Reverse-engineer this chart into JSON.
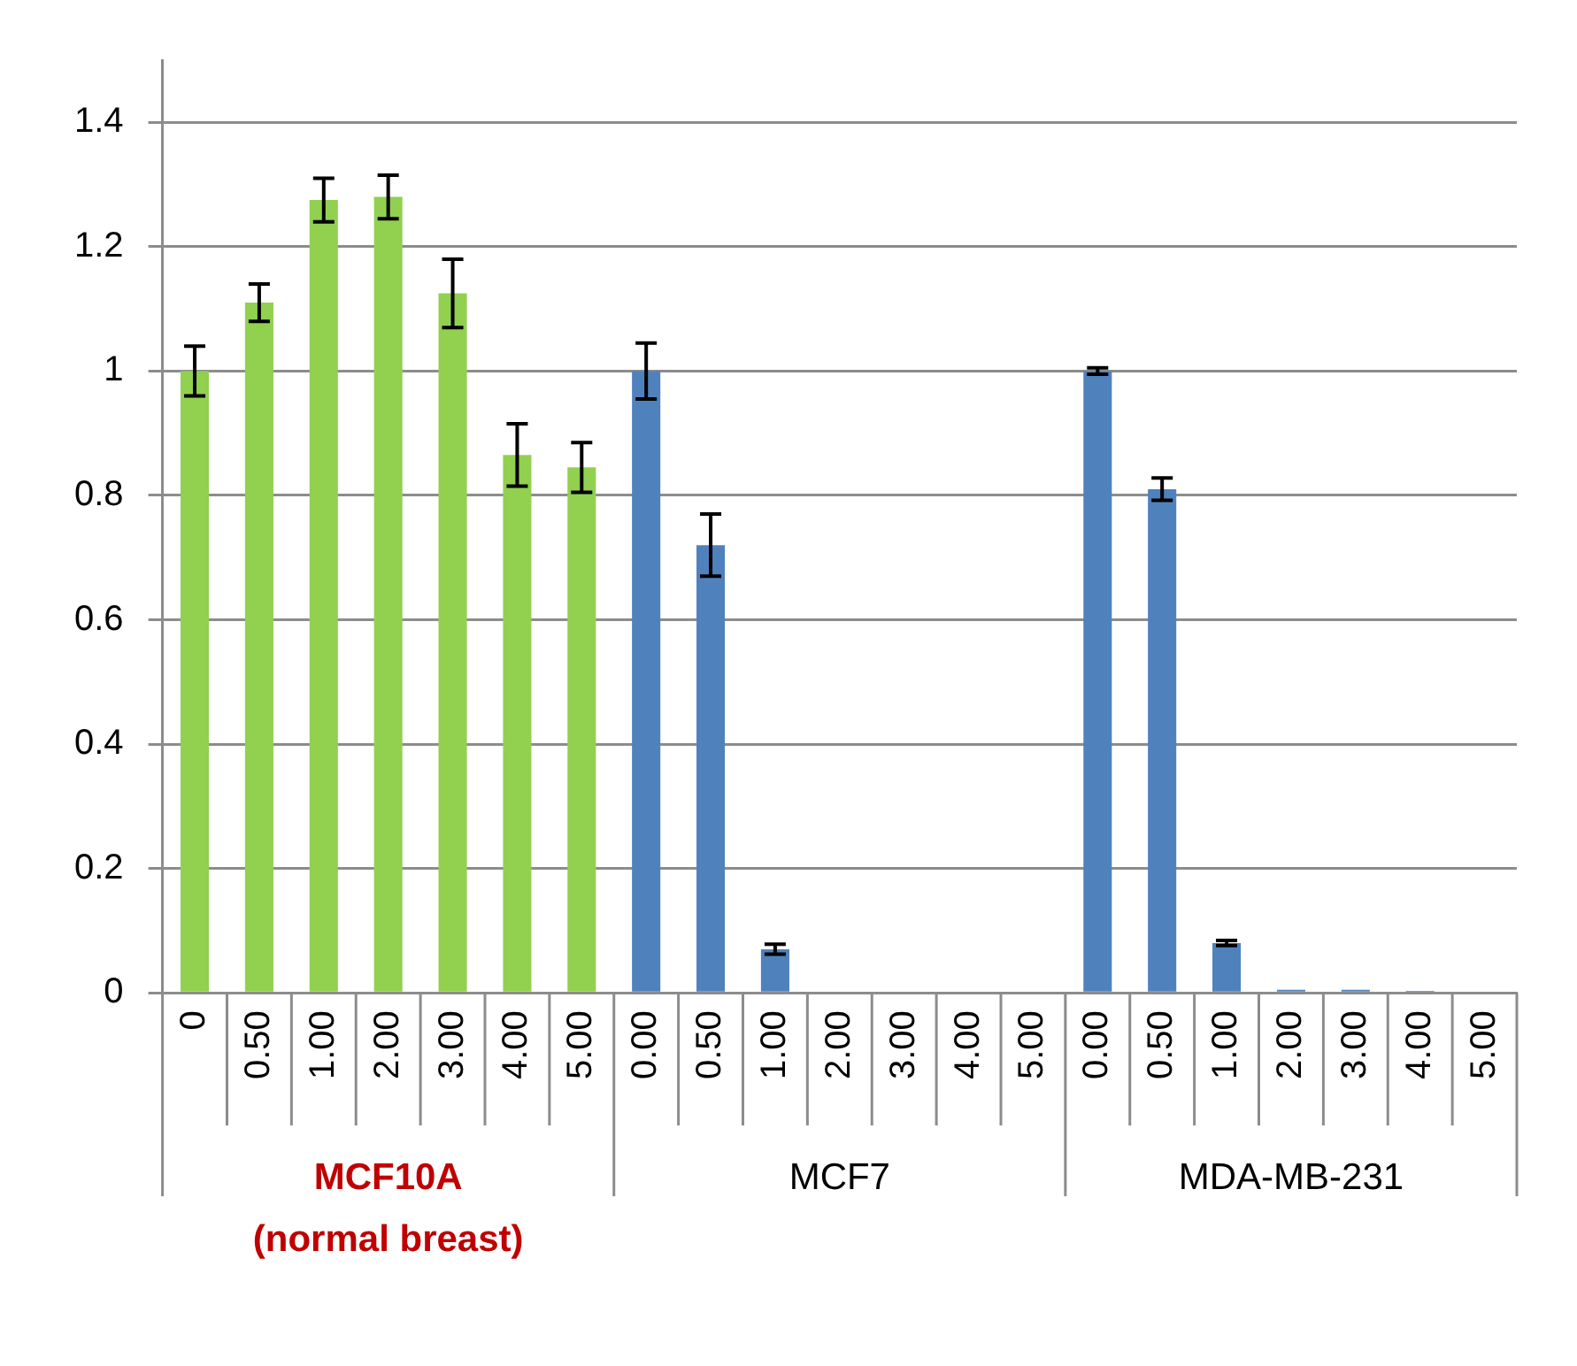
{
  "chart_data": {
    "type": "bar",
    "categories": [
      "0",
      "0.50",
      "1.00",
      "2.00",
      "3.00",
      "4.00",
      "5.00",
      "0.00",
      "0.50",
      "1.00",
      "2.00",
      "3.00",
      "4.00",
      "5.00",
      "0.00",
      "0.50",
      "1.00",
      "2.00",
      "3.00",
      "4.00",
      "5.00"
    ],
    "values": [
      1.0,
      1.11,
      1.275,
      1.28,
      1.125,
      0.865,
      0.845,
      1.0,
      0.72,
      0.07,
      0,
      0,
      0,
      0,
      1.0,
      0.81,
      0.08,
      0.005,
      0.005,
      0.003,
      0
    ],
    "colors": [
      "#92d050",
      "#92d050",
      "#92d050",
      "#92d050",
      "#92d050",
      "#92d050",
      "#92d050",
      "#4f81bd",
      "#4f81bd",
      "#4f81bd",
      "#4f81bd",
      "#4f81bd",
      "#4f81bd",
      "#4f81bd",
      "#4f81bd",
      "#4f81bd",
      "#4f81bd",
      "#4f81bd",
      "#4f81bd",
      "#4f81bd",
      "#4f81bd"
    ],
    "errors": [
      0.04,
      0.03,
      0.035,
      0.035,
      0.055,
      0.05,
      0.04,
      0.045,
      0.05,
      0.008,
      null,
      null,
      null,
      null,
      0.005,
      0.018,
      0.004,
      null,
      null,
      null,
      null
    ],
    "ylim": [
      0,
      1.5
    ],
    "yticks": [
      0,
      0.2,
      0.4,
      0.6,
      0.8,
      1,
      1.2,
      1.4
    ],
    "grid": "y",
    "legend": false,
    "annotations": [
      "MCF10A\n(normal breast)",
      "MCF7",
      "MDA-MB-231"
    ]
  }
}
